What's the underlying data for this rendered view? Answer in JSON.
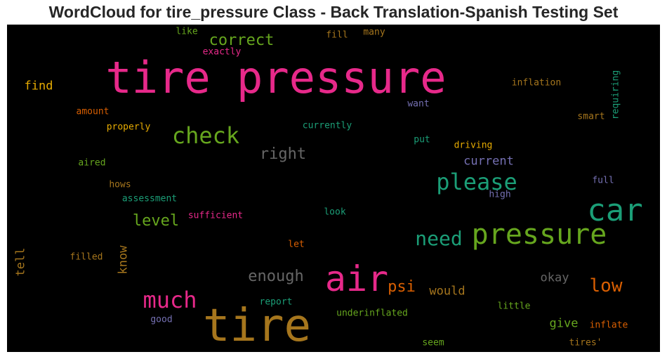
{
  "chart_data": {
    "type": "wordcloud",
    "title": "WordCloud for tire_pressure Class - Back Translation-Spanish Testing Set",
    "background": "#000000",
    "words": [
      {
        "text": "tire pressure",
        "color": "#e7298a"
      },
      {
        "text": "tire",
        "color": "#a6761d"
      },
      {
        "text": "air",
        "color": "#e7298a"
      },
      {
        "text": "car",
        "color": "#1b9e77"
      },
      {
        "text": "pressure",
        "color": "#66a61e"
      },
      {
        "text": "check",
        "color": "#66a61e"
      },
      {
        "text": "please",
        "color": "#1b9e77"
      },
      {
        "text": "much",
        "color": "#e7298a"
      },
      {
        "text": "need",
        "color": "#1b9e77"
      },
      {
        "text": "correct",
        "color": "#66a61e"
      },
      {
        "text": "right",
        "color": "#666666"
      },
      {
        "text": "low",
        "color": "#d95f02"
      },
      {
        "text": "enough",
        "color": "#666666"
      },
      {
        "text": "level",
        "color": "#66a61e"
      },
      {
        "text": "psi",
        "color": "#d95f02"
      },
      {
        "text": "current",
        "color": "#7570b3"
      },
      {
        "text": "find",
        "color": "#e6ab02"
      },
      {
        "text": "would",
        "color": "#a6761d"
      },
      {
        "text": "okay",
        "color": "#666666"
      },
      {
        "text": "give",
        "color": "#66a61e"
      },
      {
        "text": "know",
        "color": "#a6761d"
      },
      {
        "text": "tell",
        "color": "#a6761d"
      },
      {
        "text": "inflation",
        "color": "#a6761d"
      },
      {
        "text": "requiring",
        "color": "#1b9e77"
      },
      {
        "text": "currently",
        "color": "#1b9e77"
      },
      {
        "text": "properly",
        "color": "#e6ab02"
      },
      {
        "text": "amount",
        "color": "#d95f02"
      },
      {
        "text": "want",
        "color": "#7570b3"
      },
      {
        "text": "smart",
        "color": "#a6761d"
      },
      {
        "text": "driving",
        "color": "#e6ab02"
      },
      {
        "text": "put",
        "color": "#1b9e77"
      },
      {
        "text": "aired",
        "color": "#66a61e"
      },
      {
        "text": "hows",
        "color": "#a6761d"
      },
      {
        "text": "full",
        "color": "#7570b3"
      },
      {
        "text": "high",
        "color": "#7570b3"
      },
      {
        "text": "assessment",
        "color": "#1b9e77"
      },
      {
        "text": "sufficient",
        "color": "#e7298a"
      },
      {
        "text": "look",
        "color": "#1b9e77"
      },
      {
        "text": "let",
        "color": "#d95f02"
      },
      {
        "text": "filled",
        "color": "#a6761d"
      },
      {
        "text": "report",
        "color": "#1b9e77"
      },
      {
        "text": "underinflated",
        "color": "#66a61e"
      },
      {
        "text": "little",
        "color": "#66a61e"
      },
      {
        "text": "good",
        "color": "#7570b3"
      },
      {
        "text": "inflate",
        "color": "#d95f02"
      },
      {
        "text": "seem",
        "color": "#66a61e"
      },
      {
        "text": "tires'",
        "color": "#a6761d"
      },
      {
        "text": "like",
        "color": "#66a61e"
      },
      {
        "text": "exactly",
        "color": "#e7298a"
      },
      {
        "text": "fill",
        "color": "#a6761d"
      },
      {
        "text": "many",
        "color": "#a6761d"
      }
    ]
  }
}
